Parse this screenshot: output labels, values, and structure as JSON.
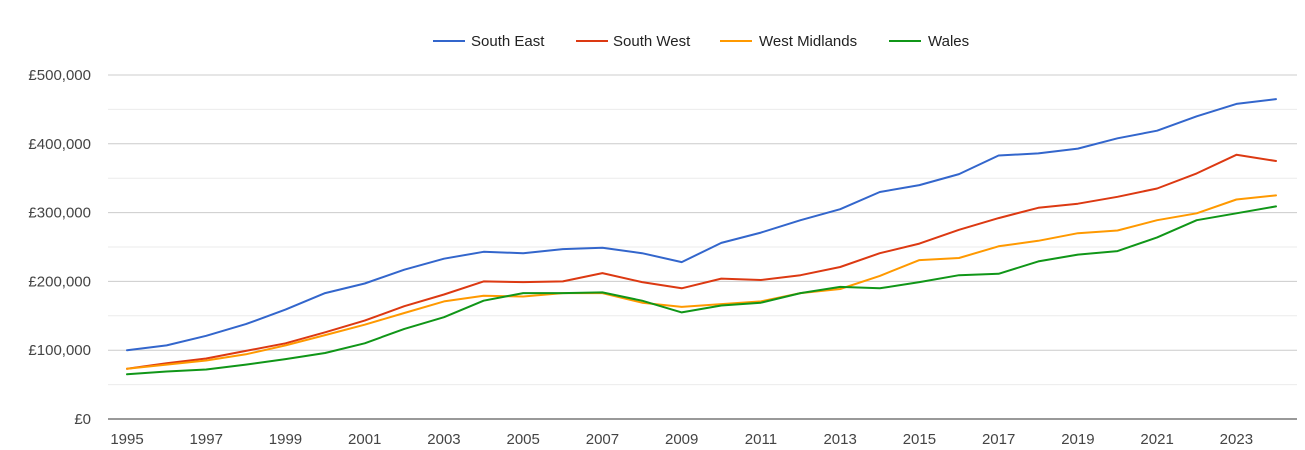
{
  "chart_data": {
    "type": "line",
    "title": "",
    "xlabel": "",
    "ylabel": "",
    "ylim": [
      0,
      500000
    ],
    "y_ticks": [
      0,
      100000,
      200000,
      300000,
      400000,
      500000
    ],
    "y_tick_labels": [
      "£0",
      "£100,000",
      "£200,000",
      "£300,000",
      "£400,000",
      "£500,000"
    ],
    "x_tick_labels": [
      "1995",
      "1997",
      "1999",
      "2001",
      "2003",
      "2005",
      "2007",
      "2009",
      "2011",
      "2013",
      "2015",
      "2017",
      "2019",
      "2021",
      "2023"
    ],
    "x": [
      1995,
      1996,
      1997,
      1998,
      1999,
      2000,
      2001,
      2002,
      2003,
      2004,
      2005,
      2006,
      2007,
      2008,
      2009,
      2010,
      2011,
      2012,
      2013,
      2014,
      2015,
      2016,
      2017,
      2018,
      2019,
      2020,
      2021,
      2022,
      2023,
      2024
    ],
    "grid": true,
    "legend_position": "top",
    "series": [
      {
        "name": "South East",
        "color": "#3366cc",
        "values": [
          100000,
          107000,
          121000,
          138000,
          159000,
          183000,
          197000,
          217000,
          233000,
          243000,
          241000,
          247000,
          249000,
          241000,
          228000,
          256000,
          271000,
          289000,
          305000,
          330000,
          340000,
          356000,
          383000,
          386000,
          393000,
          408000,
          419000,
          440000,
          458000,
          465000
        ]
      },
      {
        "name": "South West",
        "color": "#dc3912",
        "values": [
          73000,
          81000,
          88000,
          99000,
          110000,
          126000,
          143000,
          164000,
          181000,
          200000,
          199000,
          200000,
          212000,
          199000,
          190000,
          204000,
          202000,
          209000,
          221000,
          241000,
          255000,
          275000,
          292000,
          307000,
          313000,
          323000,
          335000,
          357000,
          384000,
          375000
        ]
      },
      {
        "name": "West Midlands",
        "color": "#ff9900",
        "values": [
          73000,
          79000,
          85000,
          94000,
          107000,
          122000,
          137000,
          154000,
          171000,
          179000,
          178000,
          183000,
          183000,
          169000,
          163000,
          167000,
          171000,
          183000,
          189000,
          208000,
          231000,
          234000,
          251000,
          259000,
          270000,
          274000,
          289000,
          299000,
          319000,
          325000
        ]
      },
      {
        "name": "Wales",
        "color": "#109618",
        "values": [
          65000,
          69000,
          72000,
          79000,
          87000,
          96000,
          110000,
          131000,
          148000,
          172000,
          183000,
          183000,
          184000,
          172000,
          155000,
          165000,
          169000,
          183000,
          192000,
          190000,
          199000,
          209000,
          211000,
          229000,
          239000,
          244000,
          264000,
          289000,
          299000,
          309000
        ]
      }
    ]
  }
}
